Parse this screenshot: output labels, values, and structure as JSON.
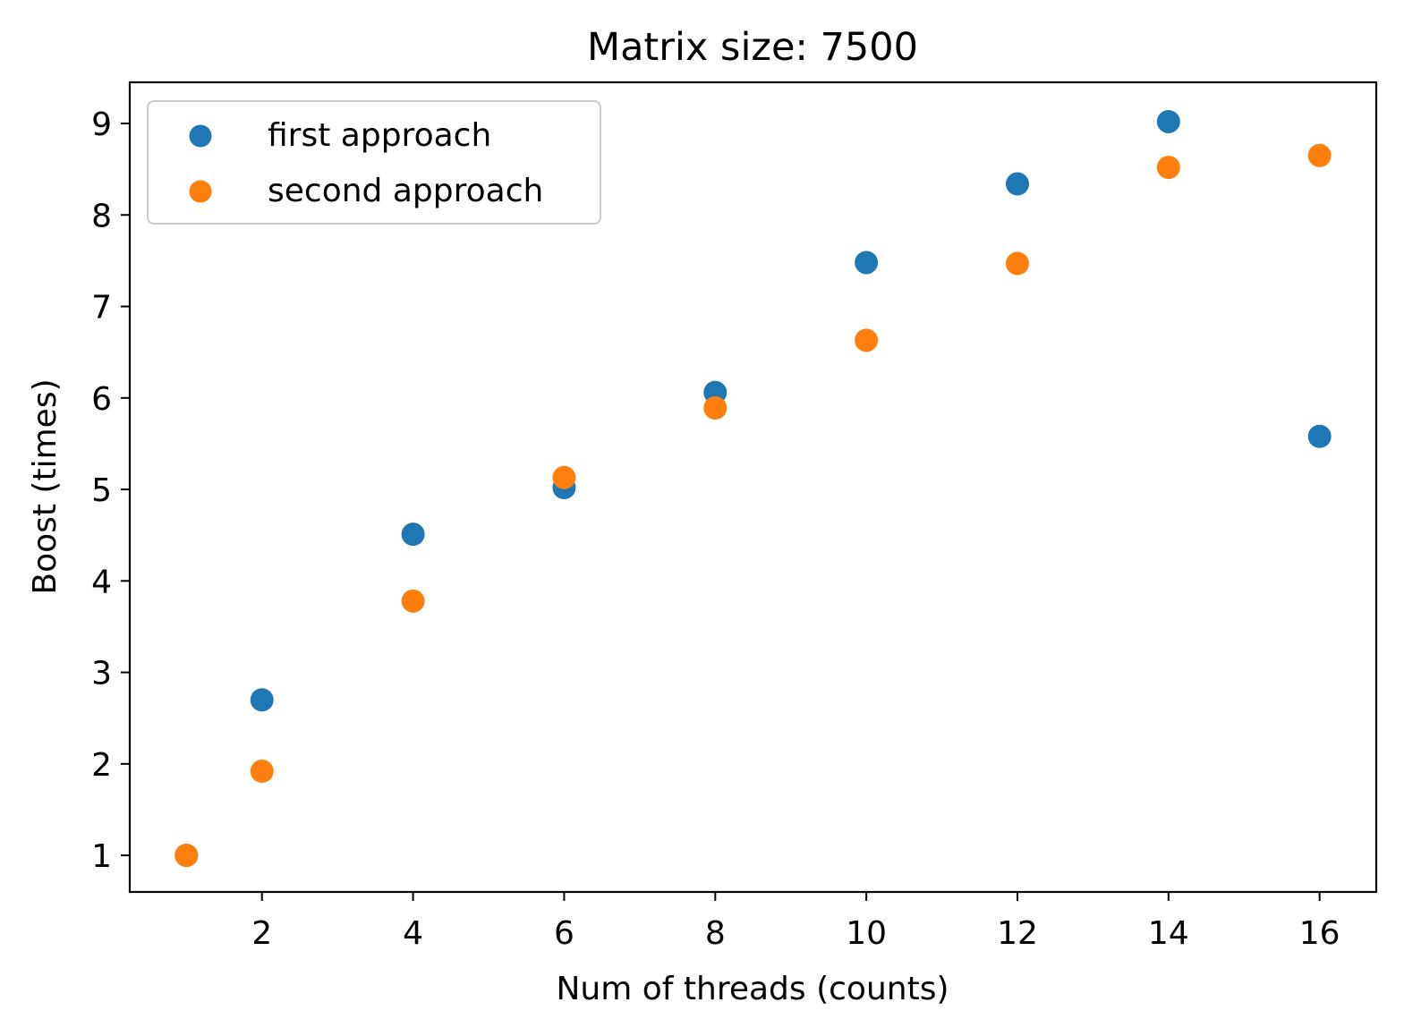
{
  "chart_data": {
    "type": "scatter",
    "title": "Matrix size: 7500",
    "xlabel": "Num of threads (counts)",
    "ylabel": "Boost (times)",
    "xlim": [
      0.25,
      16.75
    ],
    "ylim": [
      0.6,
      9.45
    ],
    "xticks": [
      2,
      4,
      6,
      8,
      10,
      12,
      14,
      16
    ],
    "yticks": [
      1,
      2,
      3,
      4,
      5,
      6,
      7,
      8,
      9
    ],
    "grid": false,
    "legend_position": "upper left",
    "series": [
      {
        "name": "first approach",
        "color": "#1f77b4",
        "x": [
          1,
          2,
          4,
          6,
          8,
          10,
          12,
          14,
          16
        ],
        "y": [
          1.0,
          2.7,
          4.51,
          5.02,
          6.06,
          7.48,
          8.34,
          9.02,
          5.58
        ]
      },
      {
        "name": "second approach",
        "color": "#ff7f0e",
        "x": [
          1,
          2,
          4,
          6,
          8,
          10,
          12,
          14,
          16
        ],
        "y": [
          1.0,
          1.92,
          3.78,
          5.13,
          5.89,
          6.63,
          7.47,
          8.52,
          8.65
        ]
      }
    ]
  }
}
